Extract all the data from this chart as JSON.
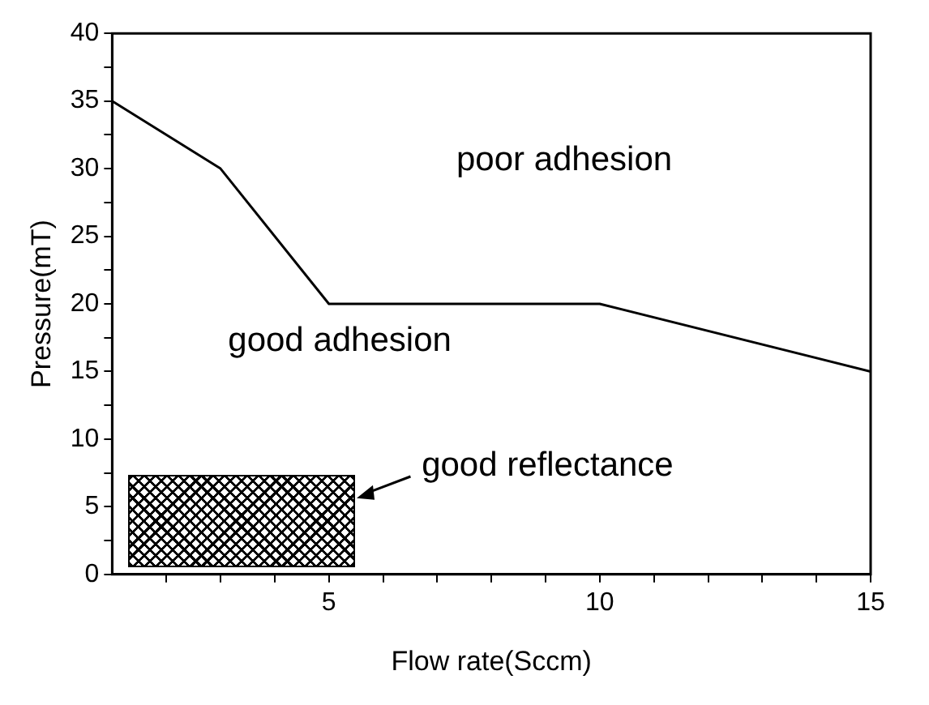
{
  "chart_data": {
    "type": "line",
    "xlabel": "Flow rate(Sccm)",
    "ylabel": "Pressure(mT)",
    "x": [
      1,
      3,
      5,
      10,
      15
    ],
    "series": [
      {
        "color": "#000000",
        "values": [
          35,
          30,
          20,
          20,
          15
        ]
      }
    ],
    "xlim": [
      1,
      15
    ],
    "xticks": [
      {
        "value": 2,
        "label": null
      },
      {
        "value": 3,
        "label": null
      },
      {
        "value": 4,
        "label": null
      },
      5,
      {
        "value": 6,
        "label": null
      },
      {
        "value": 7,
        "label": null
      },
      {
        "value": 8,
        "label": null
      },
      {
        "value": 9,
        "label": null
      },
      10,
      {
        "value": 11,
        "label": null
      },
      {
        "value": 12,
        "label": null
      },
      {
        "value": 13,
        "label": null
      },
      {
        "value": 14,
        "label": null
      },
      15
    ],
    "ylim": [
      0,
      40
    ],
    "yticks": [
      0,
      {
        "value": 2.5,
        "label": null
      },
      5,
      {
        "value": 7.5,
        "label": null
      },
      10,
      {
        "value": 12.5,
        "label": null
      },
      15,
      {
        "value": 17.5,
        "label": null
      },
      20,
      {
        "value": 22.5,
        "label": null
      },
      25,
      {
        "value": 27.5,
        "label": null
      },
      30,
      {
        "value": 32.5,
        "label": null
      },
      35,
      {
        "value": 37.5,
        "label": null
      },
      40
    ],
    "grid": false,
    "legend": false,
    "marker": "none",
    "line_style": "solid",
    "annotations": [
      "poor adhesion",
      "good adhesion",
      "good reflectance"
    ]
  }
}
